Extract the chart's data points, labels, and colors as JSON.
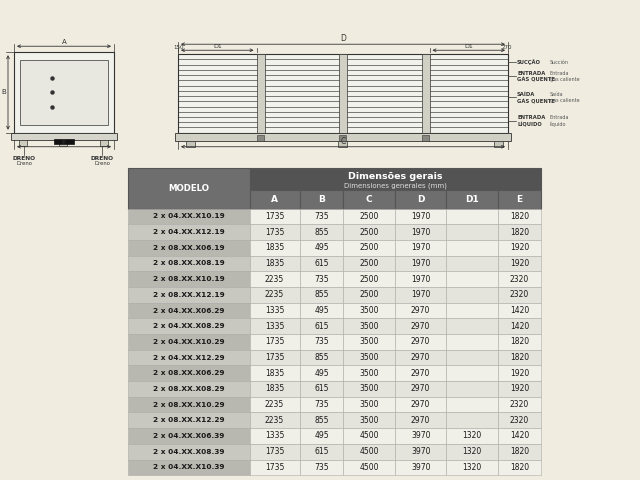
{
  "bg_color": "#f0ece0",
  "line_col": "#333333",
  "table_header1_fc": "#5a5a5a",
  "table_header2_fc": "#6e6e6e",
  "table_model_fc_odd": "#b8b8b0",
  "table_model_fc_even": "#c8c8c0",
  "table_data_fc_odd": "#f0f0e8",
  "table_data_fc_even": "#e4e4dc",
  "table_ec": "#999999",
  "header_text_color": "#ffffff",
  "col_header": [
    "A",
    "B",
    "C",
    "D",
    "D1",
    "E"
  ],
  "model_header": "MODELO",
  "dim_header1": "Dimensões gerais",
  "dim_header2": "Dimensiones generales (mm)",
  "rows": [
    [
      "2 x 04.XX.X10.19",
      "1735",
      "735",
      "2500",
      "1970",
      "",
      "1820"
    ],
    [
      "2 x 04.XX.X12.19",
      "1735",
      "855",
      "2500",
      "1970",
      "",
      "1820"
    ],
    [
      "2 x 08.XX.X06.19",
      "1835",
      "495",
      "2500",
      "1970",
      "",
      "1920"
    ],
    [
      "2 x 08.XX.X08.19",
      "1835",
      "615",
      "2500",
      "1970",
      "",
      "1920"
    ],
    [
      "2 x 08.XX.X10.19",
      "2235",
      "735",
      "2500",
      "1970",
      "",
      "2320"
    ],
    [
      "2 x 08.XX.X12.19",
      "2235",
      "855",
      "2500",
      "1970",
      "",
      "2320"
    ],
    [
      "2 x 04.XX.X06.29",
      "1335",
      "495",
      "3500",
      "2970",
      "",
      "1420"
    ],
    [
      "2 x 04.XX.X08.29",
      "1335",
      "615",
      "3500",
      "2970",
      "",
      "1420"
    ],
    [
      "2 x 04.XX.X10.29",
      "1735",
      "735",
      "3500",
      "2970",
      "",
      "1820"
    ],
    [
      "2 x 04.XX.X12.29",
      "1735",
      "855",
      "3500",
      "2970",
      "",
      "1820"
    ],
    [
      "2 x 08.XX.X06.29",
      "1835",
      "495",
      "3500",
      "2970",
      "",
      "1920"
    ],
    [
      "2 x 08.XX.X08.29",
      "1835",
      "615",
      "3500",
      "2970",
      "",
      "1920"
    ],
    [
      "2 x 08.XX.X10.29",
      "2235",
      "735",
      "3500",
      "2970",
      "",
      "2320"
    ],
    [
      "2 x 08.XX.X12.29",
      "2235",
      "855",
      "3500",
      "2970",
      "",
      "2320"
    ],
    [
      "2 x 04.XX.X06.39",
      "1335",
      "495",
      "4500",
      "3970",
      "1320",
      "1420"
    ],
    [
      "2 x 04.XX.X08.39",
      "1735",
      "615",
      "4500",
      "3970",
      "1320",
      "1820"
    ],
    [
      "2 x 04.XX.X10.39",
      "1735",
      "735",
      "4500",
      "3970",
      "1320",
      "1820"
    ]
  ]
}
